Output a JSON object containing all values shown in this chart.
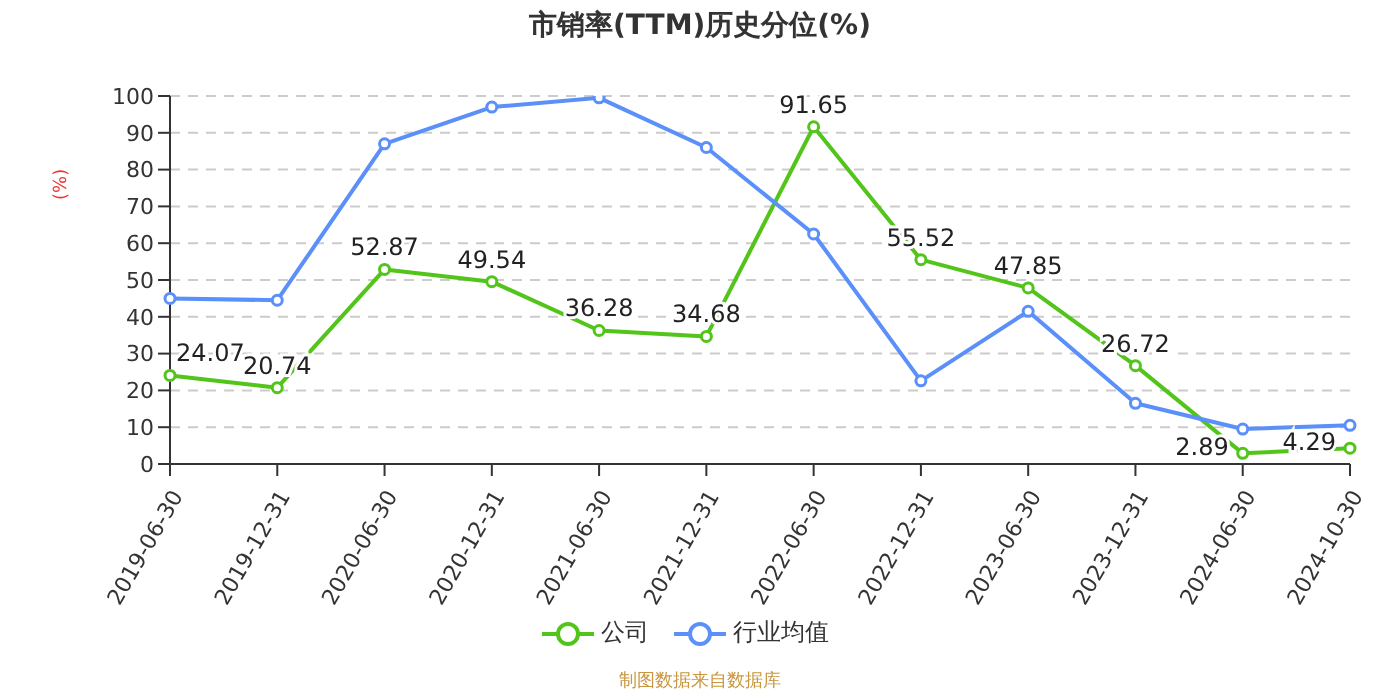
{
  "chart_data": {
    "type": "line",
    "title": "市销率(TTM)历史分位(%)",
    "ylabel": "(%)",
    "categories": [
      "2019-06-30",
      "2019-12-31",
      "2020-06-30",
      "2020-12-31",
      "2021-06-30",
      "2021-12-31",
      "2022-06-30",
      "2022-12-31",
      "2023-06-30",
      "2023-12-31",
      "2024-06-30",
      "2024-10-30"
    ],
    "series": [
      {
        "name": "公司",
        "color": "#52c41a",
        "values": [
          24.07,
          20.74,
          52.87,
          49.54,
          36.28,
          34.68,
          91.65,
          55.52,
          47.85,
          26.72,
          2.89,
          4.29
        ],
        "value_labels": [
          "24.07",
          "20.74",
          "52.87",
          "49.54",
          "36.28",
          "34.68",
          "91.65",
          "55.52",
          "47.85",
          "26.72",
          "2.89",
          "4.29"
        ]
      },
      {
        "name": "行业均值",
        "color": "#5b8ff9",
        "values": [
          45,
          44.5,
          87,
          97,
          99.5,
          86,
          62.5,
          22.6,
          41.5,
          16.5,
          9.5,
          10.5
        ]
      }
    ],
    "ylim": [
      0,
      100
    ],
    "yticks": [
      0,
      10,
      20,
      30,
      40,
      50,
      60,
      70,
      80,
      90,
      100
    ],
    "grid": "y",
    "legend": "bottom",
    "marker": "circle",
    "line_style": "solid",
    "annotations": [
      "制图数据来自数据库"
    ]
  }
}
